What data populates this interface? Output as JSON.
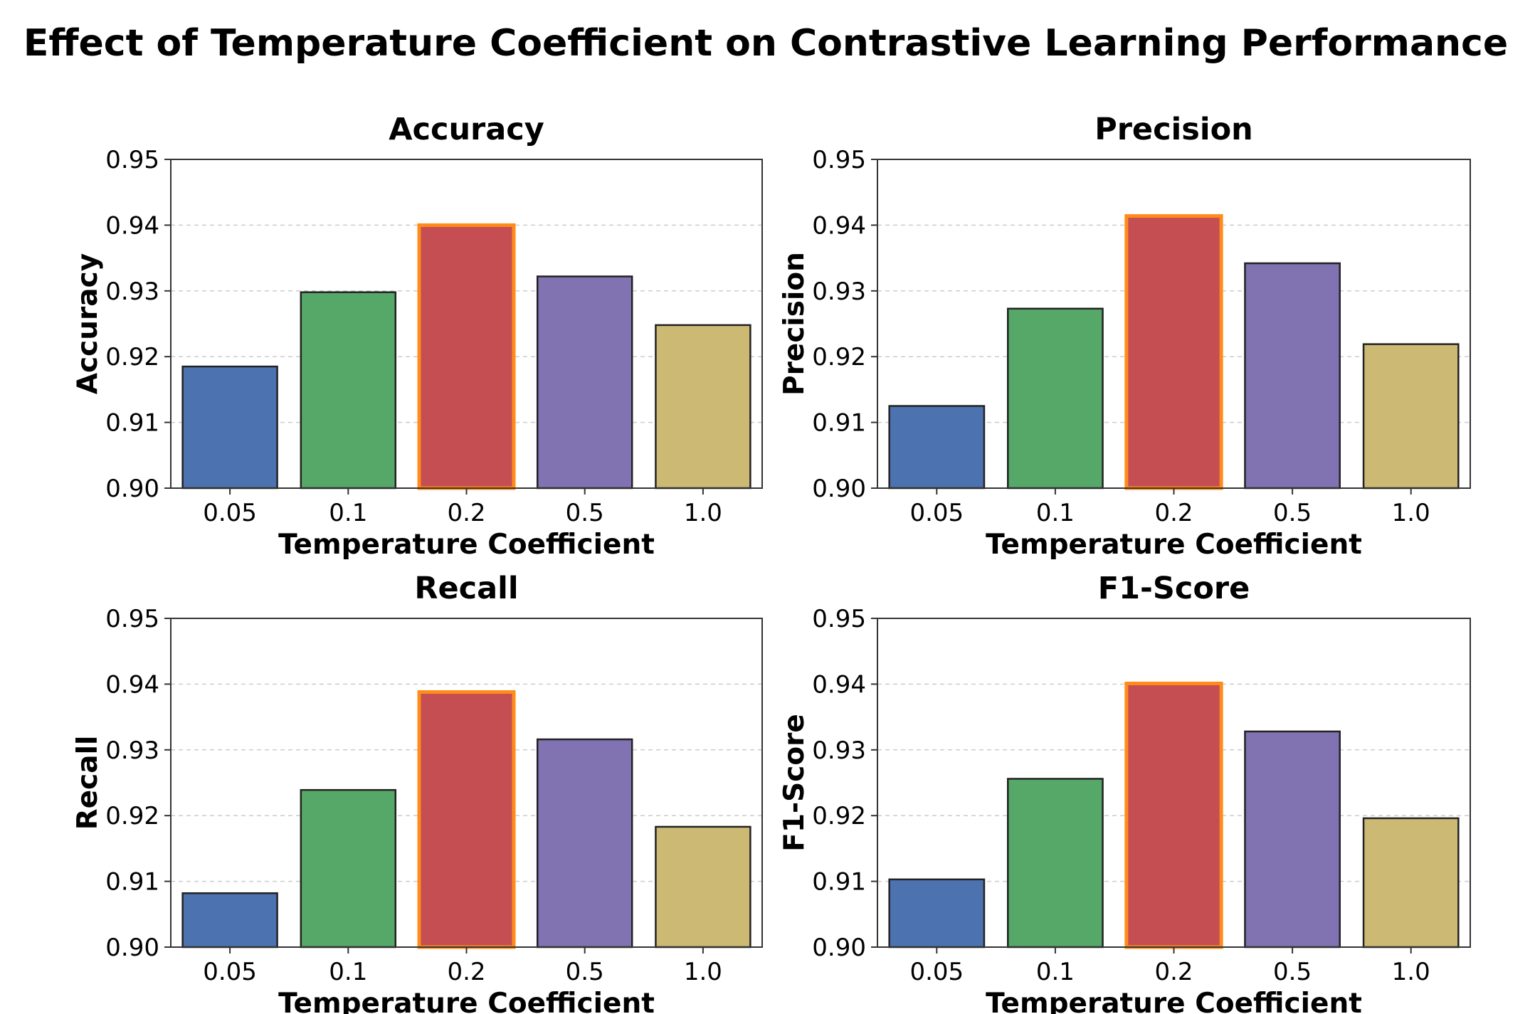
{
  "figure": {
    "title": "Effect of Temperature Coefficient on Contrastive Learning Performance"
  },
  "chart_data": [
    {
      "type": "bar",
      "title": "Accuracy",
      "xlabel": "Temperature Coefficient",
      "ylabel": "Accuracy",
      "categories": [
        "0.05",
        "0.1",
        "0.2",
        "0.5",
        "1.0"
      ],
      "values": [
        0.9185,
        0.9298,
        0.94,
        0.9322,
        0.9248
      ],
      "ylim": [
        0.9,
        0.95
      ],
      "yticks": [
        "0.90",
        "0.91",
        "0.92",
        "0.93",
        "0.94",
        "0.95"
      ],
      "grid": "y dashed",
      "highlight_index": 2
    },
    {
      "type": "bar",
      "title": "Precision",
      "xlabel": "Temperature Coefficient",
      "ylabel": "Precision",
      "categories": [
        "0.05",
        "0.1",
        "0.2",
        "0.5",
        "1.0"
      ],
      "values": [
        0.9125,
        0.9273,
        0.9414,
        0.9342,
        0.9219
      ],
      "ylim": [
        0.9,
        0.95
      ],
      "yticks": [
        "0.90",
        "0.91",
        "0.92",
        "0.93",
        "0.94",
        "0.95"
      ],
      "grid": "y dashed",
      "highlight_index": 2
    },
    {
      "type": "bar",
      "title": "Recall",
      "xlabel": "Temperature Coefficient",
      "ylabel": "Recall",
      "categories": [
        "0.05",
        "0.1",
        "0.2",
        "0.5",
        "1.0"
      ],
      "values": [
        0.9082,
        0.9239,
        0.9388,
        0.9316,
        0.9183
      ],
      "ylim": [
        0.9,
        0.95
      ],
      "yticks": [
        "0.90",
        "0.91",
        "0.92",
        "0.93",
        "0.94",
        "0.95"
      ],
      "grid": "y dashed",
      "highlight_index": 2
    },
    {
      "type": "bar",
      "title": "F1-Score",
      "xlabel": "Temperature Coefficient",
      "ylabel": "F1-Score",
      "categories": [
        "0.05",
        "0.1",
        "0.2",
        "0.5",
        "1.0"
      ],
      "values": [
        0.9103,
        0.9256,
        0.9401,
        0.9328,
        0.9196
      ],
      "ylim": [
        0.9,
        0.95
      ],
      "yticks": [
        "0.90",
        "0.91",
        "0.92",
        "0.93",
        "0.94",
        "0.95"
      ],
      "grid": "y dashed",
      "highlight_index": 2
    }
  ],
  "colors": {
    "bars": [
      "#4c72b0",
      "#55a868",
      "#c44e52",
      "#8172b2",
      "#ccb974"
    ],
    "bar_edge": "#222222",
    "highlight_edge": "#ff8c1a"
  }
}
